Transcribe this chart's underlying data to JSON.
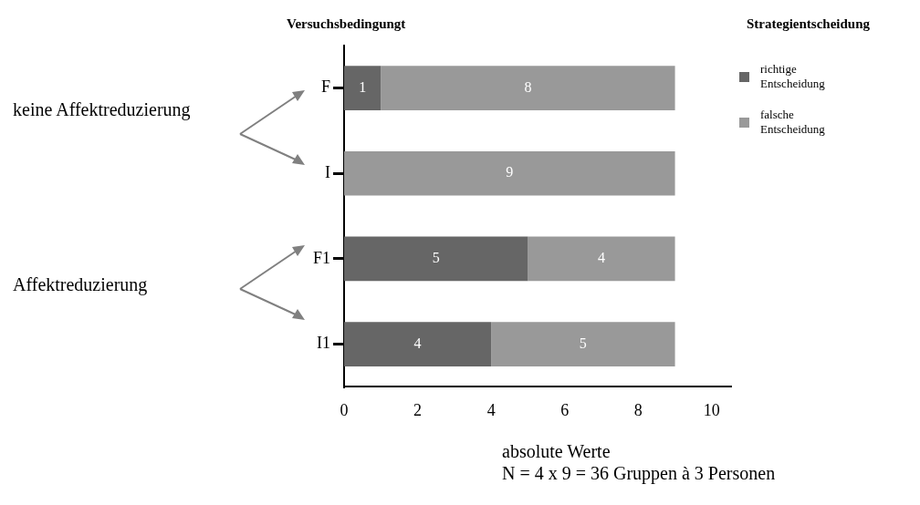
{
  "chart_data": {
    "type": "bar",
    "orientation": "horizontal",
    "stacked": true,
    "ylabel": "Versuchsbedingungt",
    "legend_title": "Strategientscheidung",
    "legend": "top right",
    "grid": false,
    "categories": [
      "F",
      "I",
      "F1",
      "I1"
    ],
    "series": [
      {
        "name": "richtige Entscheidung",
        "color": "#666666",
        "values": [
          1,
          0,
          5,
          4
        ],
        "value_labels": [
          "1",
          null,
          "5",
          "4"
        ]
      },
      {
        "name": "falsche Entscheidung",
        "color": "#999999",
        "values": [
          8,
          9,
          4,
          5
        ],
        "value_labels": [
          "8",
          "9",
          "4",
          "5"
        ]
      }
    ],
    "xlim": [
      0,
      10.5
    ],
    "xticks": [
      0,
      2,
      4,
      6,
      8,
      10
    ],
    "annotations": [
      "keine Affektreduzierung",
      "Affektreduzierung",
      "absolute Werte",
      "N = 4 x 9 = 36 Gruppen à 3 Personen"
    ]
  }
}
